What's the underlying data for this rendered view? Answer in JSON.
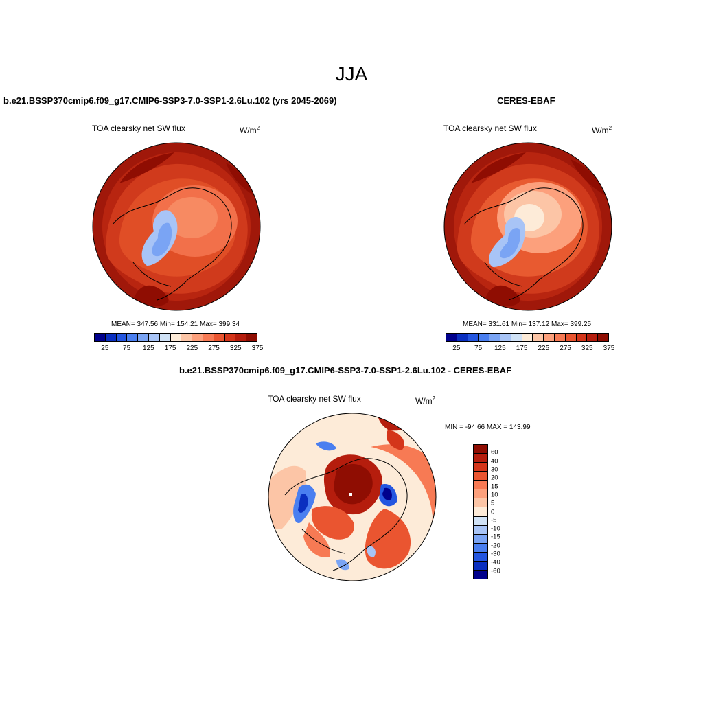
{
  "figure": {
    "title": "JJA"
  },
  "panels": [
    {
      "title": "b.e21.BSSP370cmip6.f09_g17.CMIP6-SSP3-7.0-SSP1-2.6Lu.102 (yrs 2045-2069)",
      "variable": "TOA clearsky net SW flux",
      "units_base": "W/m",
      "units_exp": "2",
      "stats": "MEAN= 347.56  Min= 154.21  Max= 399.34",
      "colorbar_ticks": [
        "25",
        "75",
        "125",
        "175",
        "225",
        "275",
        "325",
        "375"
      ]
    },
    {
      "title": "CERES-EBAF",
      "variable": "TOA clearsky net SW flux",
      "units_base": "W/m",
      "units_exp": "2",
      "stats": "MEAN= 331.61  Min= 137.12  Max= 399.25",
      "colorbar_ticks": [
        "25",
        "75",
        "125",
        "175",
        "225",
        "275",
        "325",
        "375"
      ]
    },
    {
      "title": "b.e21.BSSP370cmip6.f09_g17.CMIP6-SSP3-7.0-SSP1-2.6Lu.102 - CERES-EBAF",
      "variable": "TOA clearsky net SW flux",
      "units_base": "W/m",
      "units_exp": "2",
      "stats": "MIN = -94.66 MAX = 143.99",
      "colorbar_ticks": [
        "60",
        "40",
        "30",
        "20",
        "15",
        "10",
        "5",
        "0",
        "-5",
        "-10",
        "-15",
        "-20",
        "-30",
        "-40",
        "-60"
      ]
    }
  ],
  "colors": {
    "abs_scale": [
      "#00008c",
      "#0a2fc0",
      "#2456e0",
      "#4a7ff0",
      "#7aa4f4",
      "#a8c4f6",
      "#d0e2f6",
      "#fdebd8",
      "#fcc5a6",
      "#fca07c",
      "#f77a54",
      "#ea5530",
      "#d4351a",
      "#b51d0d",
      "#8f0d02"
    ],
    "diff_scale": [
      "#8f0d02",
      "#b51d0d",
      "#d4351a",
      "#ea5530",
      "#f77a54",
      "#fca07c",
      "#fcc5a6",
      "#fdebd8",
      "#d0e2f6",
      "#a8c4f6",
      "#7aa4f4",
      "#4a7ff0",
      "#2456e0",
      "#0a2fc0",
      "#00008c"
    ]
  }
}
